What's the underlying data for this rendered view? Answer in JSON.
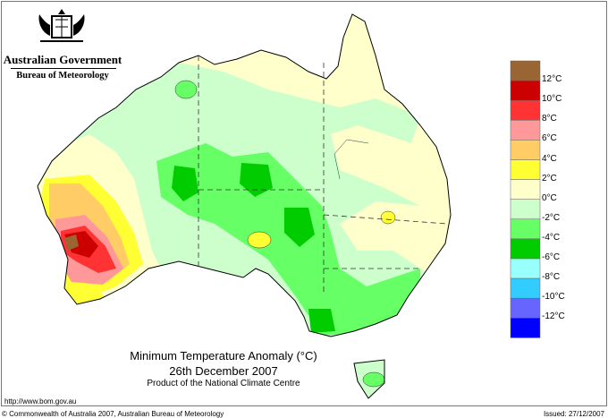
{
  "header": {
    "government": "Australian Government",
    "agency": "Bureau of Meteorology",
    "logo_icon": "coat-of-arms-icon"
  },
  "map": {
    "title": "Minimum Temperature Anomaly (°C)",
    "date": "26th December 2007",
    "product": "Product of the National Climate Centre"
  },
  "legend": {
    "labels": [
      "12°C",
      "10°C",
      "8°C",
      "6°C",
      "4°C",
      "2°C",
      "0°C",
      "-2°C",
      "-4°C",
      "-6°C",
      "-8°C",
      "-10°C",
      "-12°C"
    ],
    "colors": [
      "#996633",
      "#cc0000",
      "#ff3333",
      "#ff9999",
      "#ffcc66",
      "#ffff33",
      "#ffffcc",
      "#ccffcc",
      "#66ff66",
      "#00cc00",
      "#99ffff",
      "#33ccff",
      "#6666ff",
      "#0000ff"
    ]
  },
  "footer": {
    "url": "http://www.bom.gov.au",
    "copyright": "© Commonwealth of Australia 2007, Australian Bureau of Meteorology",
    "issued": "Issued: 27/12/2007"
  }
}
